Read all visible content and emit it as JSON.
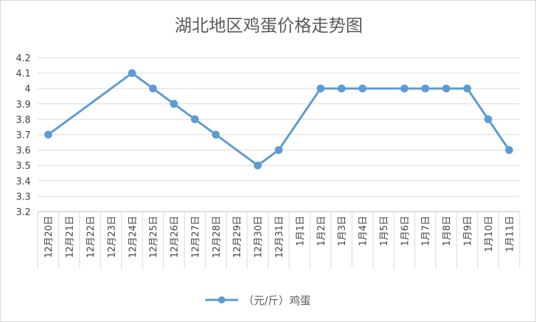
{
  "chart_data": {
    "type": "line",
    "title": "湖北地区鸡蛋价格走势图",
    "xlabel": "",
    "ylabel": "",
    "categories": [
      "12月20日",
      "12月21日",
      "12月22日",
      "12月23日",
      "12月24日",
      "12月25日",
      "12月26日",
      "12月27日",
      "12月28日",
      "12月29日",
      "12月30日",
      "12月31日",
      "1月1日",
      "1月2日",
      "1月3日",
      "1月4日",
      "1月5日",
      "1月6日",
      "1月7日",
      "1月8日",
      "1月9日",
      "1月10日",
      "1月11日"
    ],
    "ylim": [
      3.2,
      4.2
    ],
    "yticks": [
      "3.2",
      "3.3",
      "3.4",
      "3.5",
      "3.6",
      "3.7",
      "3.8",
      "3.9",
      "4",
      "4.1",
      "4.2"
    ],
    "grid": true,
    "legend_position": "bottom",
    "series": [
      {
        "name": "（元/斤）鸡蛋",
        "color": "#5b9bd5",
        "values": [
          3.7,
          null,
          null,
          null,
          4.1,
          4.0,
          3.9,
          3.8,
          3.7,
          null,
          3.5,
          3.6,
          null,
          4.0,
          4.0,
          4.0,
          null,
          4.0,
          4.0,
          4.0,
          4.0,
          3.8,
          3.6
        ]
      }
    ]
  }
}
